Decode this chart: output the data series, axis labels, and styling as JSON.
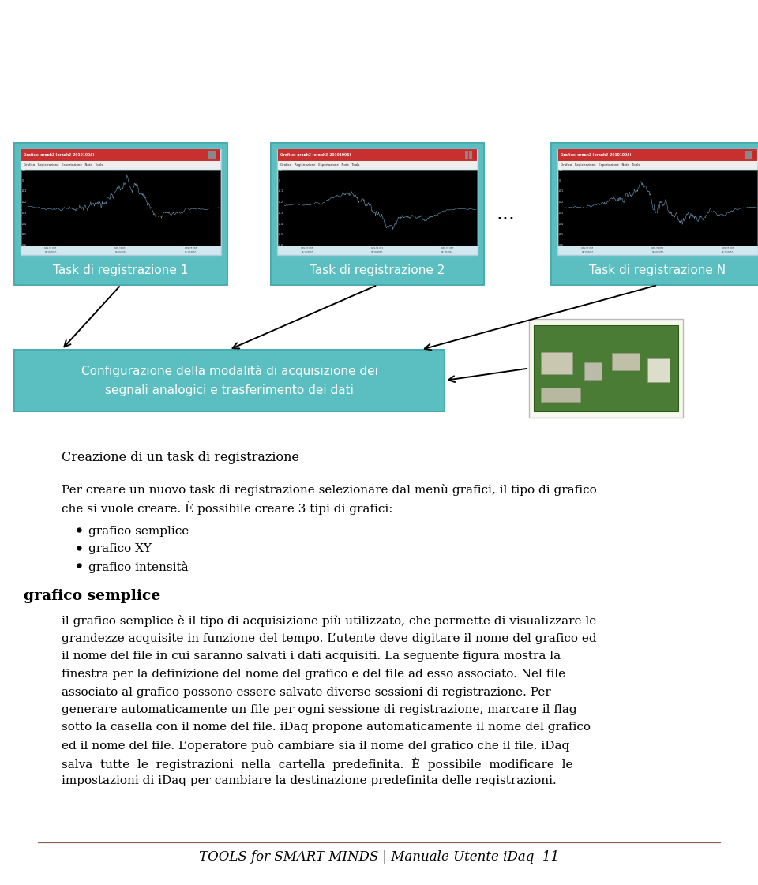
{
  "bg_color": "#ffffff",
  "teal_color": "#5BBEC0",
  "teal_dark": "#4AABB0",
  "task_labels": [
    "Task di registrazione 1",
    "Task di registrazione 2",
    "Task di registrazione N"
  ],
  "config_box_text": "Configurazione della modalità di acquisizione dei\nsegnali analogici e trasferimento dei dati",
  "section_heading": "Creazione di un task di registrazione",
  "bold_heading": "grafico semplice",
  "bullet_items": [
    "grafico semplice",
    "grafico XY",
    "grafico intensità"
  ],
  "para2_lines": [
    "il grafico semplice è il tipo di acquisizione più utilizzato, che permette di visualizzare le",
    "grandezze acquisite in funzione del tempo. L’utente deve digitare il nome del grafico ed",
    "il nome del file in cui saranno salvati i dati acquisiti. La seguente figura mostra la",
    "finestra per la definizione del nome del grafico e del file ad esso associato. Nel file",
    "associato al grafico possono essere salvate diverse sessioni di registrazione. Per",
    "generare automaticamente un file per ogni sessione di registrazione, marcare il flag",
    "sotto la casella con il nome del file. iDaq propone automaticamente il nome del grafico",
    "ed il nome del file. L’operatore può cambiare sia il nome del grafico che il file. iDaq",
    "salva  tutte  le  registrazioni  nella  cartella  predefinita.  È  possibile  modificare  le",
    "impostazioni di iDaq per cambiare la destinazione predefinita delle registrazioni."
  ],
  "footer_line_color": "#8B6050",
  "footer_text": "TOOLS for SMART MINDS | Manuale Utente iDaq  11",
  "dots_text": "...",
  "para1_line1": "Per creare un nuovo task di registrazione selezionare dal menù grafici, il tipo di grafico",
  "para1_line2": "che si vuole creare. È possibile creare 3 tipi di grafici:"
}
